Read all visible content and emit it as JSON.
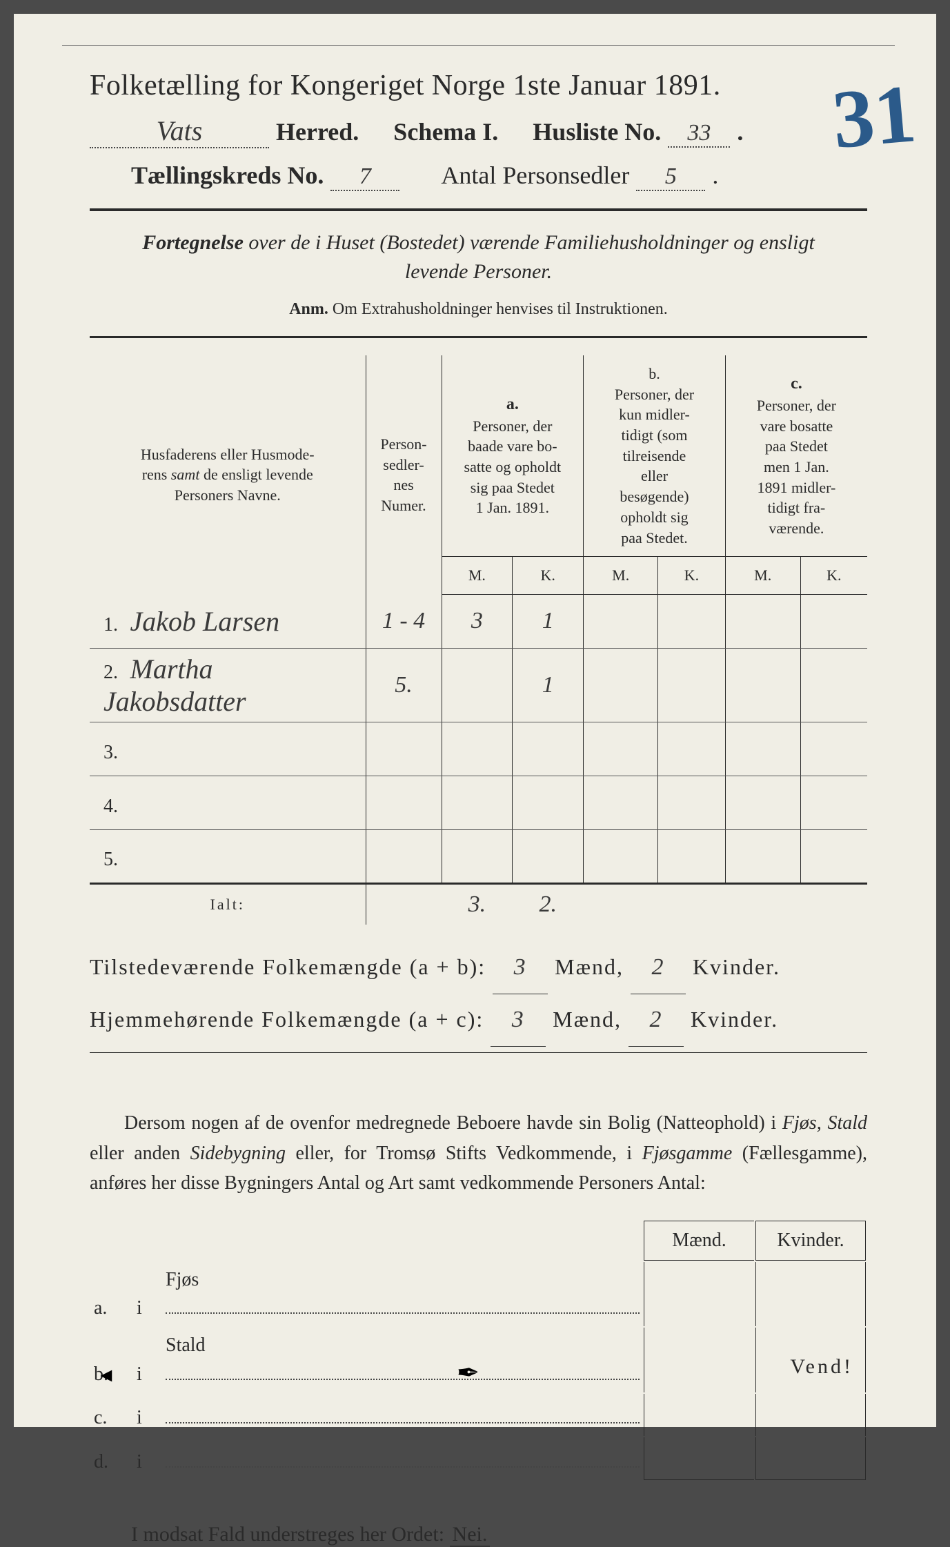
{
  "colors": {
    "paper": "#f0eee5",
    "ink": "#2a2a2a",
    "pen_blue": "#2b5a8a",
    "pen_dark": "#3a3a3a",
    "rule": "#555"
  },
  "header": {
    "title": "Folketælling for Kongeriget Norge 1ste Januar 1891.",
    "herred_value": "Vats",
    "herred_label": "Herred.",
    "schema_label": "Schema I.",
    "husliste_label": "Husliste No.",
    "husliste_value": "33",
    "kreds_label": "Tællingskreds No.",
    "kreds_value": "7",
    "person_label": "Antal Personsedler",
    "person_value": "5",
    "annotation": "31"
  },
  "subtitle": {
    "line": "Fortegnelse over de i Huset (Bostedet) værende Familiehusholdninger og ensligt levende Personer.",
    "anm_label": "Anm.",
    "anm_text": "Om Extrahusholdninger henvises til Instruktionen."
  },
  "table": {
    "col1": "Husfaderens eller Husmoderens samt de ensligt levende Personers Navne.",
    "col2": "Person-sedler-nes Numer.",
    "colA_head": "a.",
    "colA": "Personer, der baade vare bosatte og opholdt sig paa Stedet 1 Jan. 1891.",
    "colB_head": "b.",
    "colB": "Personer, der kun midlertidigt (som tilreisende eller besøgende) opholdt sig paa Stedet.",
    "colC_head": "c.",
    "colC": "Personer, der vare bosatte paa Stedet men 1 Jan. 1891 midlertidigt fraværende.",
    "M": "M.",
    "K": "K.",
    "rows": [
      {
        "num": "1.",
        "name": "Jakob Larsen",
        "sedler": "1 - 4",
        "aM": "3",
        "aK": "1",
        "bM": "",
        "bK": "",
        "cM": "",
        "cK": ""
      },
      {
        "num": "2.",
        "name": "Martha Jakobsdatter",
        "sedler": "5.",
        "aM": "",
        "aK": "1",
        "bM": "",
        "bK": "",
        "cM": "",
        "cK": ""
      },
      {
        "num": "3.",
        "name": "",
        "sedler": "",
        "aM": "",
        "aK": "",
        "bM": "",
        "bK": "",
        "cM": "",
        "cK": ""
      },
      {
        "num": "4.",
        "name": "",
        "sedler": "",
        "aM": "",
        "aK": "",
        "bM": "",
        "bK": "",
        "cM": "",
        "cK": ""
      },
      {
        "num": "5.",
        "name": "",
        "sedler": "",
        "aM": "",
        "aK": "",
        "bM": "",
        "bK": "",
        "cM": "",
        "cK": ""
      }
    ],
    "ialt_label": "Ialt:",
    "ialt_aM": "3.",
    "ialt_aK": "2."
  },
  "totals": {
    "line1_label": "Tilstedeværende Folkemængde (a + b):",
    "line1_M": "3",
    "line1_K": "2",
    "line2_label": "Hjemmehørende Folkemængde (a + c):",
    "line2_M": "3",
    "line2_K": "2",
    "maend": "Mænd,",
    "kvinder": "Kvinder."
  },
  "para": "Dersom nogen af de ovenfor medregnede Beboere havde sin Bolig (Natteophold) i Fjøs, Stald eller anden Sidebygning eller, for Tromsø Stifts Vedkommende, i Fjøsgamme (Fællesgamme), anføres her disse Bygningers Antal og Art samt vedkommende Personers Antal:",
  "outbuildings": {
    "maend": "Mænd.",
    "kvinder": "Kvinder.",
    "rows": [
      {
        "letter": "a.",
        "i": "i",
        "label": "Fjøs"
      },
      {
        "letter": "b.",
        "i": "i",
        "label": "Stald"
      },
      {
        "letter": "c.",
        "i": "i",
        "label": ""
      },
      {
        "letter": "d.",
        "i": "i",
        "label": ""
      }
    ]
  },
  "modsat": {
    "text": "I modsat Fald understreges her Ordet:",
    "nei": "Nei."
  },
  "vend": "Vend!"
}
